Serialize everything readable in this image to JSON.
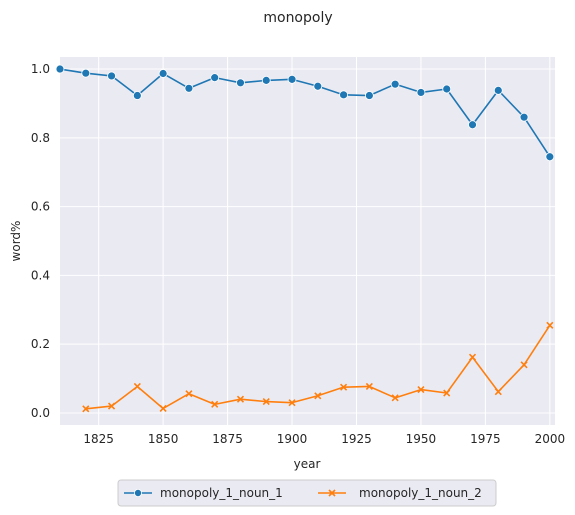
{
  "chart_data": {
    "type": "line",
    "title": "monopoly",
    "xlabel": "year",
    "ylabel": "word%",
    "xlim": [
      1810,
      2002
    ],
    "ylim": [
      -0.035,
      1.035
    ],
    "xticks": [
      1825,
      1850,
      1875,
      1900,
      1925,
      1950,
      1975,
      2000
    ],
    "yticks": [
      0.0,
      0.2,
      0.4,
      0.6,
      0.8,
      1.0
    ],
    "xtick_labels": [
      "1825",
      "1850",
      "1875",
      "1900",
      "1925",
      "1950",
      "1975",
      "2000"
    ],
    "ytick_labels": [
      "0.0",
      "0.2",
      "0.4",
      "0.6",
      "0.8",
      "1.0"
    ],
    "grid": true,
    "legend_position": "bottom-center",
    "series": [
      {
        "name": "monopoly_1_noun_1",
        "color": "#1f77b4",
        "marker": "circle",
        "x": [
          1810,
          1820,
          1830,
          1840,
          1850,
          1860,
          1870,
          1880,
          1890,
          1900,
          1910,
          1920,
          1930,
          1940,
          1950,
          1960,
          1970,
          1980,
          1990,
          2000
        ],
        "values": [
          1.0,
          0.988,
          0.98,
          0.923,
          0.987,
          0.944,
          0.975,
          0.96,
          0.967,
          0.97,
          0.95,
          0.925,
          0.923,
          0.956,
          0.932,
          0.942,
          0.838,
          0.938,
          0.86,
          0.745
        ]
      },
      {
        "name": "monopoly_1_noun_2",
        "color": "#ff7f0e",
        "marker": "x",
        "x": [
          1820,
          1830,
          1840,
          1850,
          1860,
          1870,
          1880,
          1890,
          1900,
          1910,
          1920,
          1930,
          1940,
          1950,
          1960,
          1970,
          1980,
          1990,
          2000
        ],
        "values": [
          0.012,
          0.02,
          0.077,
          0.013,
          0.056,
          0.025,
          0.04,
          0.033,
          0.03,
          0.05,
          0.075,
          0.077,
          0.044,
          0.068,
          0.058,
          0.162,
          0.062,
          0.14,
          0.255
        ]
      }
    ]
  }
}
